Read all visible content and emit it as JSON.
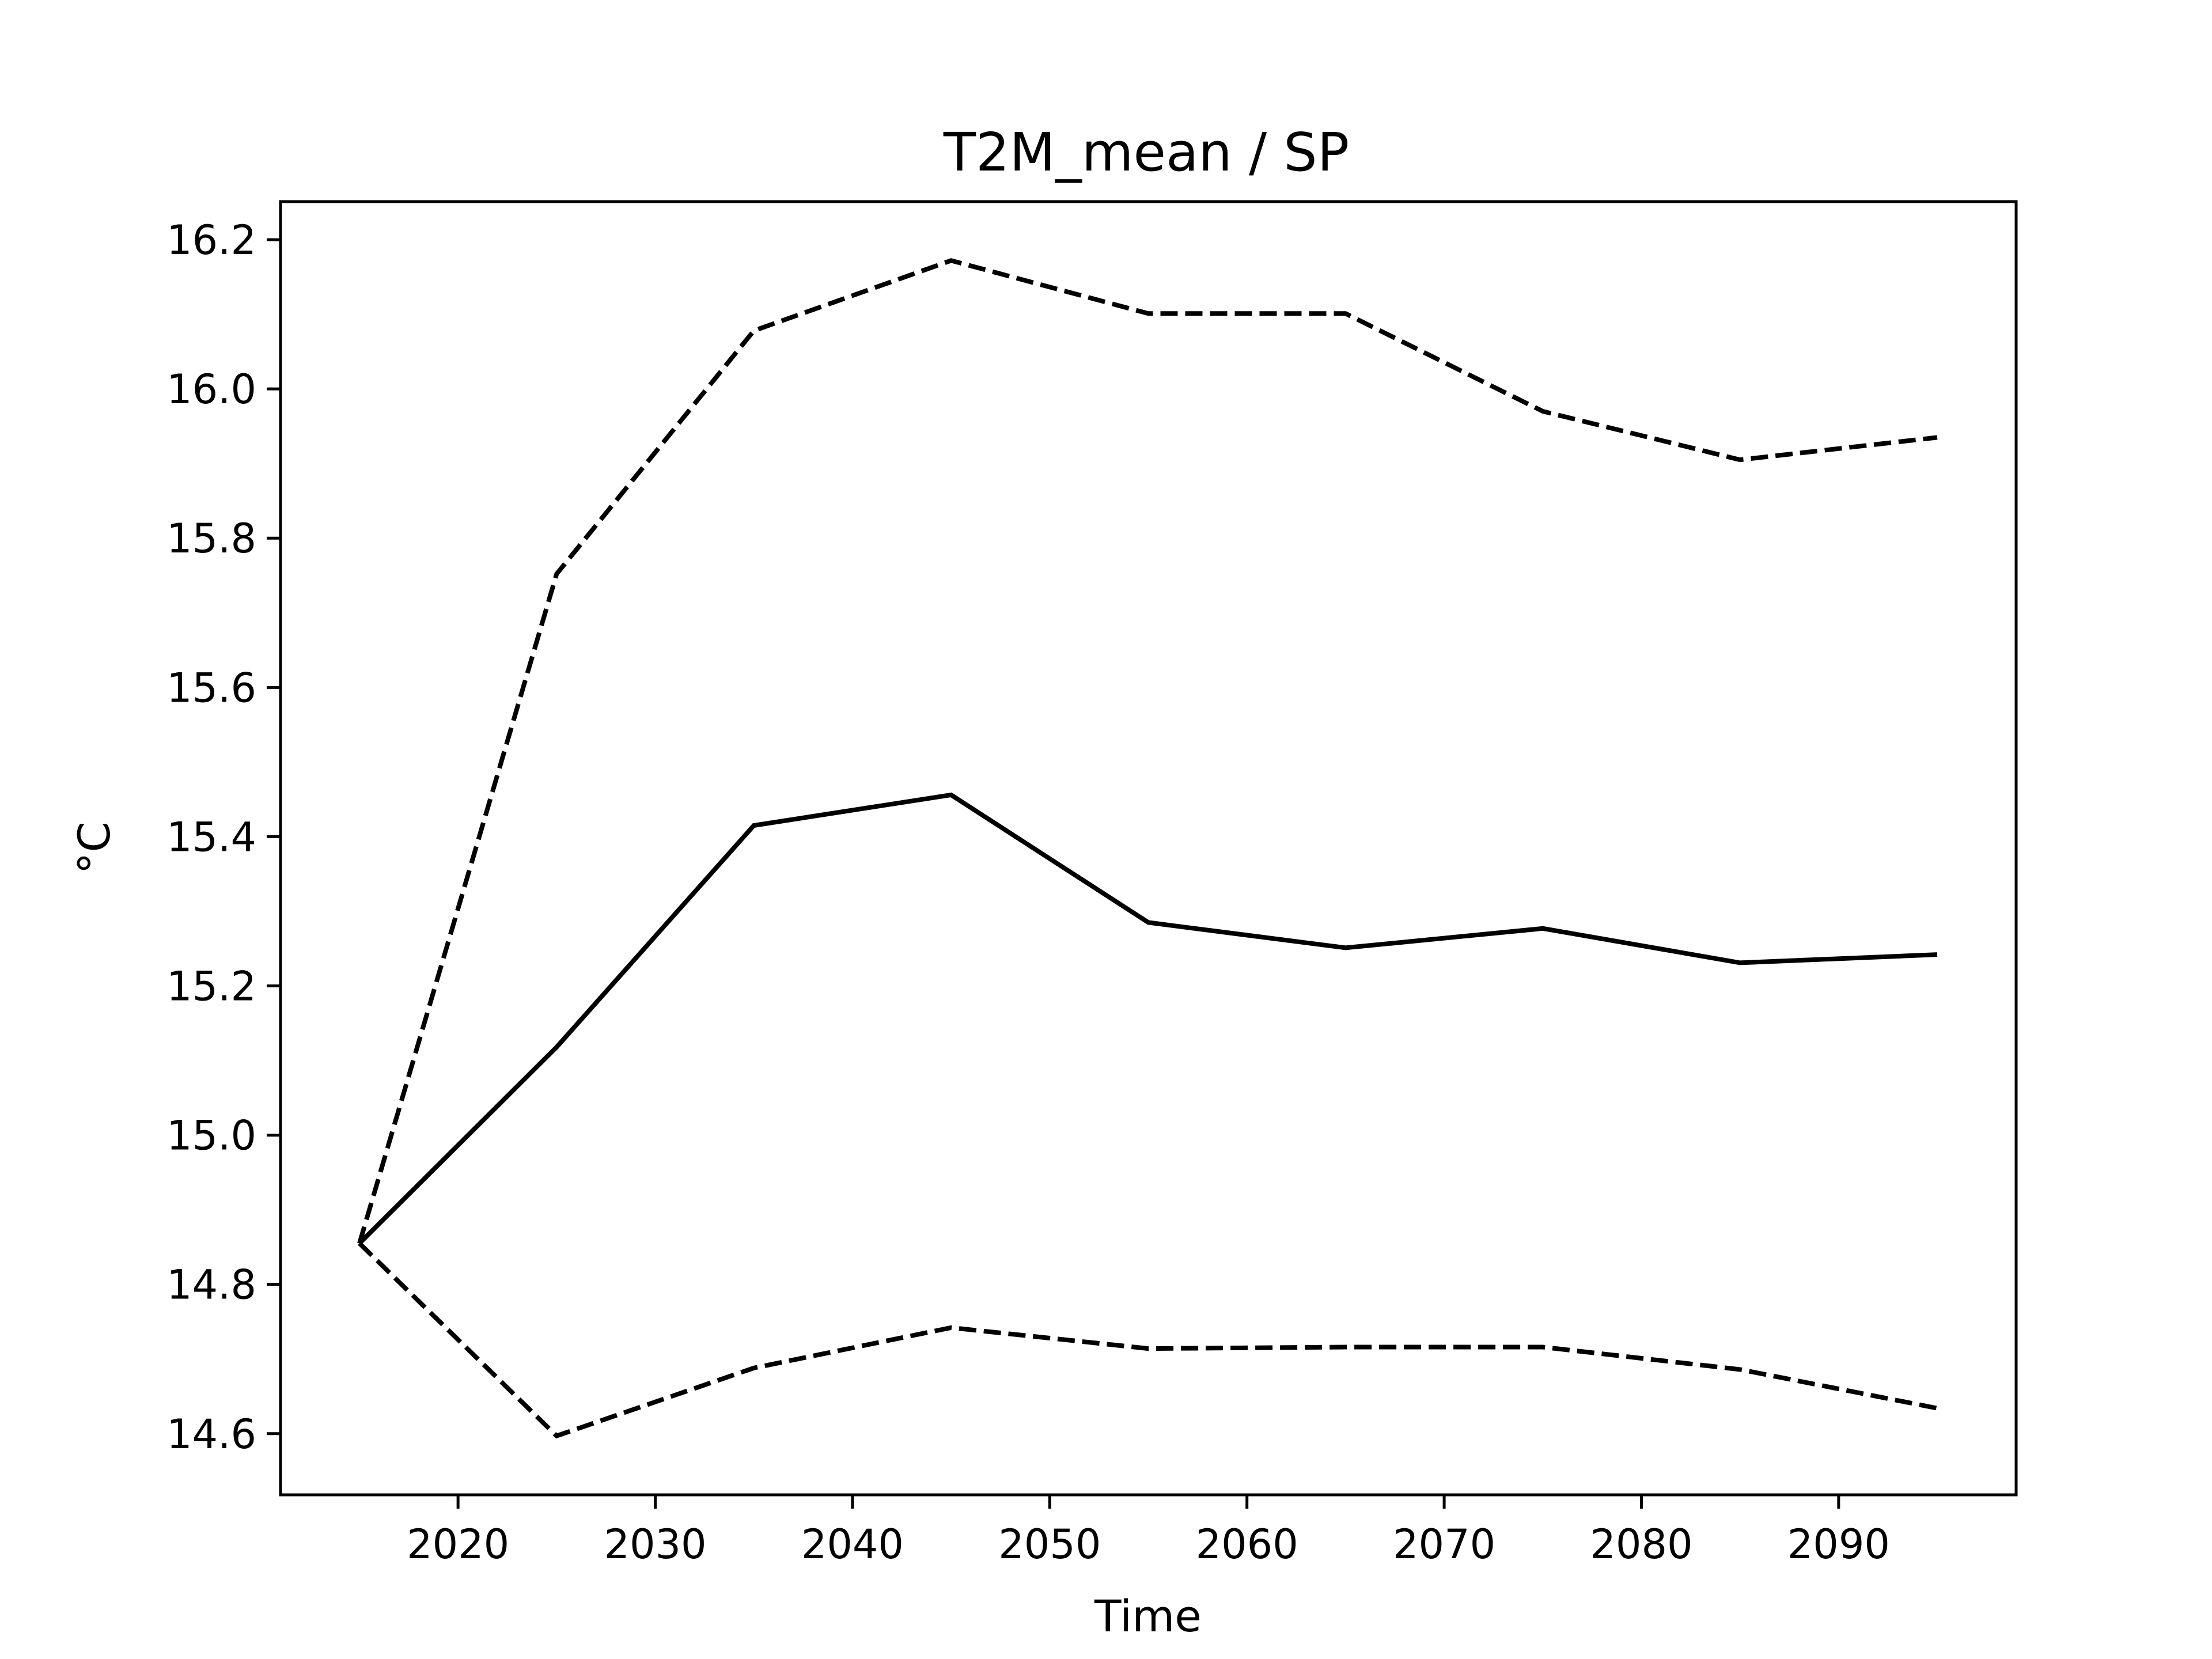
{
  "chart_data": {
    "type": "line",
    "title": "T2M_mean / SP",
    "xlabel": "Time",
    "ylabel": "°C",
    "x": [
      2015,
      2025,
      2035,
      2045,
      2055,
      2065,
      2075,
      2085,
      2095
    ],
    "series": [
      {
        "values": [
          14.855,
          15.118,
          15.415,
          15.456,
          15.285,
          15.251,
          15.277,
          15.231,
          15.242
        ],
        "style": "solid",
        "color": "#000000"
      },
      {
        "values": [
          14.855,
          15.752,
          16.078,
          16.172,
          16.101,
          16.101,
          15.97,
          15.905,
          15.935
        ],
        "style": "dashed",
        "color": "#000000"
      },
      {
        "values": [
          14.855,
          14.597,
          14.688,
          14.742,
          14.714,
          14.716,
          14.716,
          14.686,
          14.634
        ],
        "style": "dashed",
        "color": "#000000"
      }
    ],
    "xlim": [
      2011,
      2099
    ],
    "ylim": [
      14.518,
      16.251
    ],
    "xticks": [
      "2020",
      "2030",
      "2040",
      "2050",
      "2060",
      "2070",
      "2080",
      "2090"
    ],
    "yticks": [
      "14.6",
      "14.8",
      "15.0",
      "15.2",
      "15.4",
      "15.6",
      "15.8",
      "16.0",
      "16.2"
    ],
    "grid": false,
    "legend": "none"
  }
}
